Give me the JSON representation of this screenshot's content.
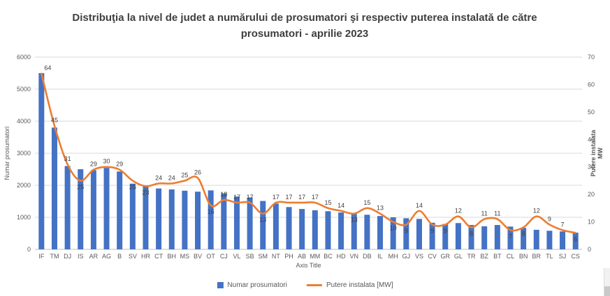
{
  "chart_data": {
    "type": "bar",
    "combo": "bar+line",
    "title": "Distribuţia la nivel de judet a numărului de prosumatori şi respectiv puterea instalată de către prosumatori - aprilie 2023",
    "categories": [
      "IF",
      "TM",
      "DJ",
      "IS",
      "AR",
      "AG",
      "B",
      "SV",
      "HR",
      "CT",
      "BH",
      "MS",
      "BV",
      "OT",
      "CJ",
      "VL",
      "SB",
      "SM",
      "NT",
      "PH",
      "AB",
      "MM",
      "BC",
      "HD",
      "VN",
      "DB",
      "IL",
      "MH",
      "GJ",
      "VS",
      "CV",
      "GR",
      "GL",
      "TR",
      "BZ",
      "BT",
      "CL",
      "BN",
      "BR",
      "TL",
      "SJ",
      "CS"
    ],
    "series": [
      {
        "name": "Numar prosumatori",
        "chart_type": "bar",
        "axis": "left",
        "color": "#4472C4",
        "values": [
          5500,
          3800,
          2600,
          2500,
          2470,
          2540,
          2430,
          2050,
          1960,
          1900,
          1870,
          1830,
          1800,
          1840,
          1750,
          1650,
          1620,
          1510,
          1430,
          1320,
          1260,
          1220,
          1190,
          1150,
          1110,
          1080,
          1040,
          1000,
          970,
          950,
          830,
          790,
          820,
          760,
          720,
          760,
          710,
          670,
          610,
          580,
          560,
          520
        ]
      },
      {
        "name": "Putere instalata [MW]",
        "chart_type": "line",
        "axis": "right",
        "color": "#ED7D31",
        "values": [
          64,
          45,
          31,
          25,
          29,
          30,
          29,
          25,
          23,
          24,
          24,
          25,
          26,
          16,
          18,
          17,
          17,
          13,
          17,
          17,
          17,
          17,
          15,
          14,
          13,
          15,
          13,
          10,
          9,
          14,
          9,
          9,
          12,
          8,
          11,
          11,
          7,
          8,
          12,
          9,
          7,
          6
        ],
        "data_labels": true,
        "label_below_indices": [
          3,
          7,
          8,
          13,
          17,
          24,
          27,
          28,
          30,
          31,
          33,
          36,
          37,
          41
        ]
      }
    ],
    "left_axis": {
      "title": "Numar prosumatori",
      "min": 0,
      "max": 6000,
      "step": 1000
    },
    "right_axis": {
      "title_line1": "Putere instalata",
      "title_line2": "MW",
      "min": 0,
      "max": 70,
      "step": 10
    },
    "x_axis": {
      "title": "Axis Title"
    },
    "legend": {
      "position": "bottom",
      "items": [
        "Numar prosumatori",
        "Putere instalata [MW]"
      ]
    },
    "grid": "horizontal-major",
    "colors": {
      "grid": "#D9D9D9",
      "axis_line": "#BFBFBF",
      "tick_text": "#595959",
      "data_label_text": "#404040",
      "title_text": "#3F3F3F"
    }
  }
}
